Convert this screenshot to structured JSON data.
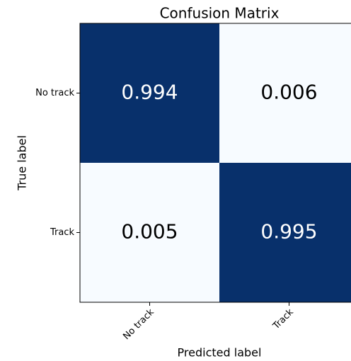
{
  "chart_data": {
    "type": "heatmap",
    "title": "Confusion Matrix",
    "x_label": "Predicted label",
    "y_label": "True label",
    "x_categories": [
      "No track",
      "Track"
    ],
    "y_categories": [
      "No track",
      "Track"
    ],
    "values": [
      [
        0.994,
        0.006
      ],
      [
        0.005,
        0.995
      ]
    ],
    "colormap": [
      "#f7fbff",
      "#08306b"
    ]
  }
}
